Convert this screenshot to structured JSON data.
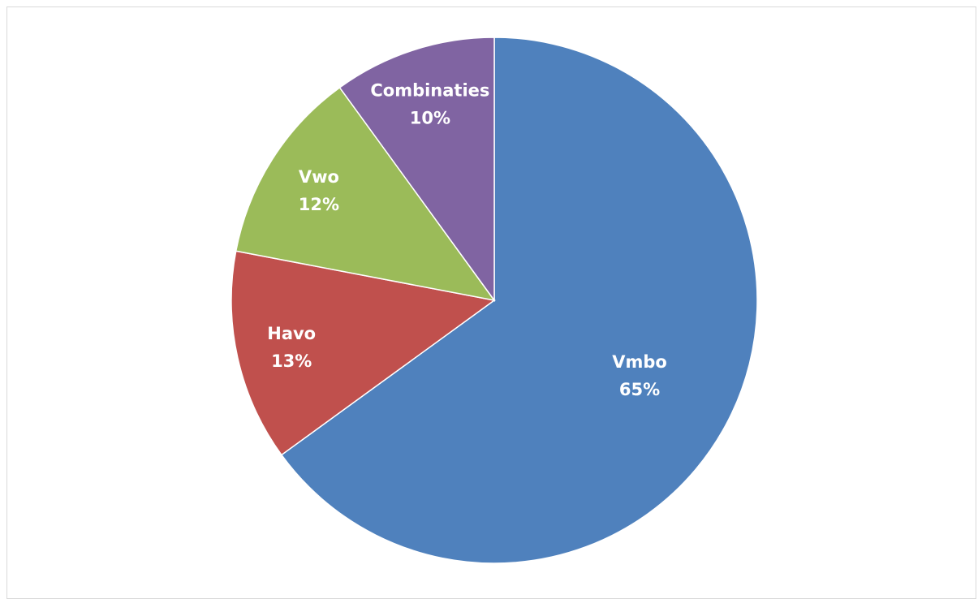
{
  "chart_data": {
    "type": "pie",
    "title": "",
    "start_angle_deg": 0,
    "direction": "clockwise",
    "legend": "none",
    "labels_inside": true,
    "slices": [
      {
        "name": "Vmbo",
        "value": 65,
        "label": "65%",
        "color": "#4F81BD"
      },
      {
        "name": "Havo",
        "value": 13,
        "label": "13%",
        "color": "#C0504D"
      },
      {
        "name": "Vwo",
        "value": 12,
        "label": "12%",
        "color": "#9BBB59"
      },
      {
        "name": "Combinaties",
        "value": 10,
        "label": "10%",
        "color": "#8064A2"
      }
    ]
  }
}
